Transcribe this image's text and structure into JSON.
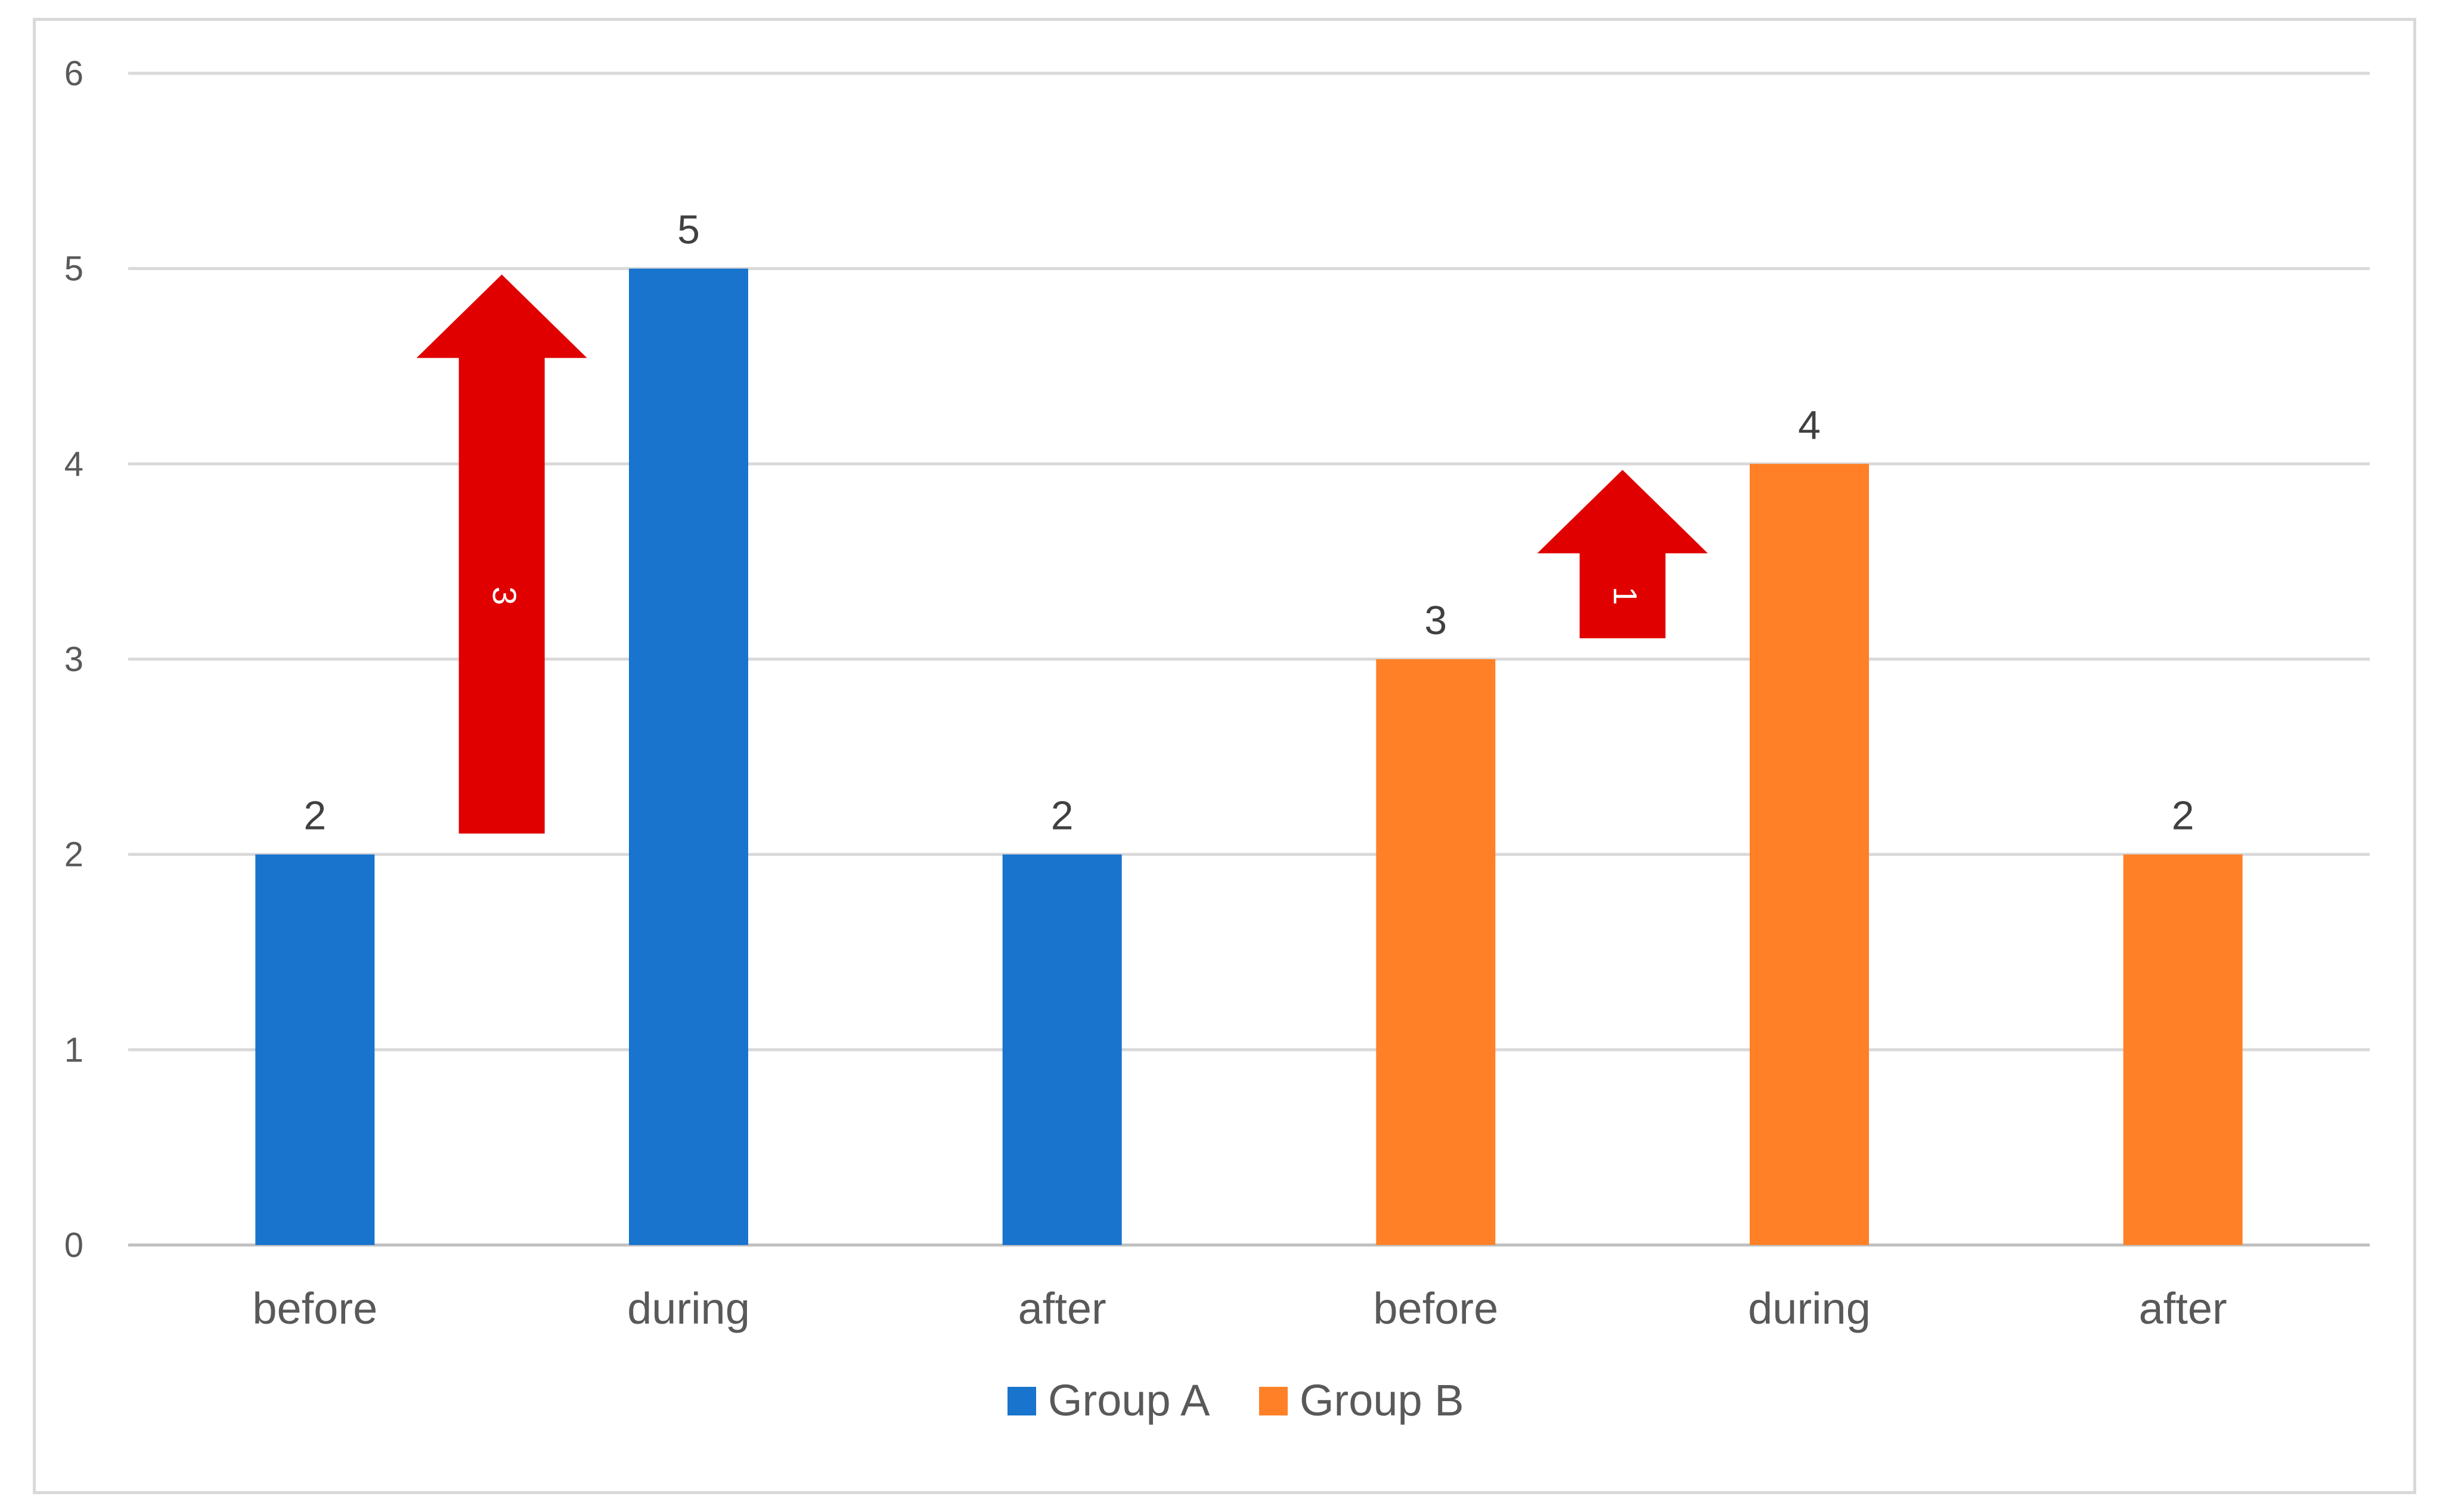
{
  "chart_data": {
    "type": "bar",
    "categories": [
      "before",
      "during",
      "after",
      "before",
      "during",
      "after"
    ],
    "series": [
      {
        "name": "Group A",
        "color": "#1874CD",
        "values": [
          2,
          5,
          2,
          null,
          null,
          null
        ]
      },
      {
        "name": "Group B",
        "color": "#FF8026",
        "values": [
          null,
          null,
          null,
          3,
          4,
          2
        ]
      }
    ],
    "ylim": [
      0,
      6
    ],
    "yticks": [
      0,
      1,
      2,
      3,
      4,
      5,
      6
    ],
    "grid": true,
    "legend_position": "bottom",
    "data_labels": true,
    "annotations": [
      {
        "type": "arrow-up",
        "label": "3",
        "from_value": 2,
        "to_value": 5,
        "between": [
          0,
          1
        ],
        "color": "#E00000"
      },
      {
        "type": "arrow-up",
        "label": "1",
        "from_value": 3,
        "to_value": 4,
        "between": [
          3,
          4
        ],
        "color": "#E00000"
      }
    ]
  }
}
